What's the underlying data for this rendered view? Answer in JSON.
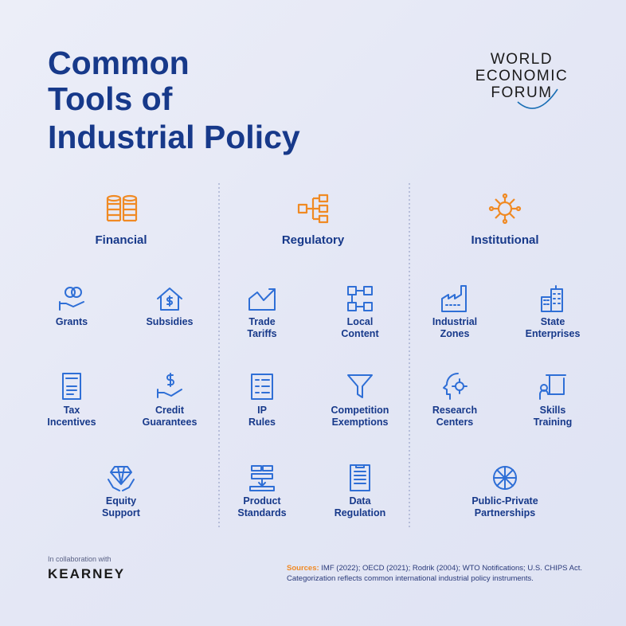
{
  "title": [
    "Common",
    "Tools of",
    "Industrial Policy"
  ],
  "logo": [
    "WORLD",
    "ECONOMIC",
    "FORUM"
  ],
  "columns": [
    {
      "heading": "Financial",
      "items": [
        {
          "label": [
            "Grants"
          ]
        },
        {
          "label": [
            "Subsidies"
          ]
        },
        {
          "label": [
            "Tax",
            "Incentives"
          ]
        },
        {
          "label": [
            "Credit",
            "Guarantees"
          ]
        },
        {
          "label": [
            "Equity",
            "Support"
          ]
        }
      ]
    },
    {
      "heading": "Regulatory",
      "items": [
        {
          "label": [
            "Trade",
            "Tariffs"
          ]
        },
        {
          "label": [
            "Local",
            "Content"
          ]
        },
        {
          "label": [
            "IP",
            "Rules"
          ]
        },
        {
          "label": [
            "Competition",
            "Exemptions"
          ]
        },
        {
          "label": [
            "Product",
            "Standards"
          ]
        },
        {
          "label": [
            "Data",
            "Regulation"
          ]
        }
      ]
    },
    {
      "heading": "Institutional",
      "items": [
        {
          "label": [
            "Industrial",
            "Zones"
          ]
        },
        {
          "label": [
            "State",
            "Enterprises"
          ]
        },
        {
          "label": [
            "Research",
            "Centers"
          ]
        },
        {
          "label": [
            "Skills",
            "Training"
          ]
        },
        {
          "label": [
            "Public-Private",
            "Partnerships"
          ]
        }
      ]
    }
  ],
  "footer": {
    "collaboration": "In collaboration with",
    "partner": "KEARNEY",
    "sources_label": "Sources:",
    "sources": "IMF (2022); OECD (2021); Rodrik (2004); WTO Notifications; U.S. CHIPS Act.",
    "note": "Categorization reflects common international industrial policy instruments."
  }
}
